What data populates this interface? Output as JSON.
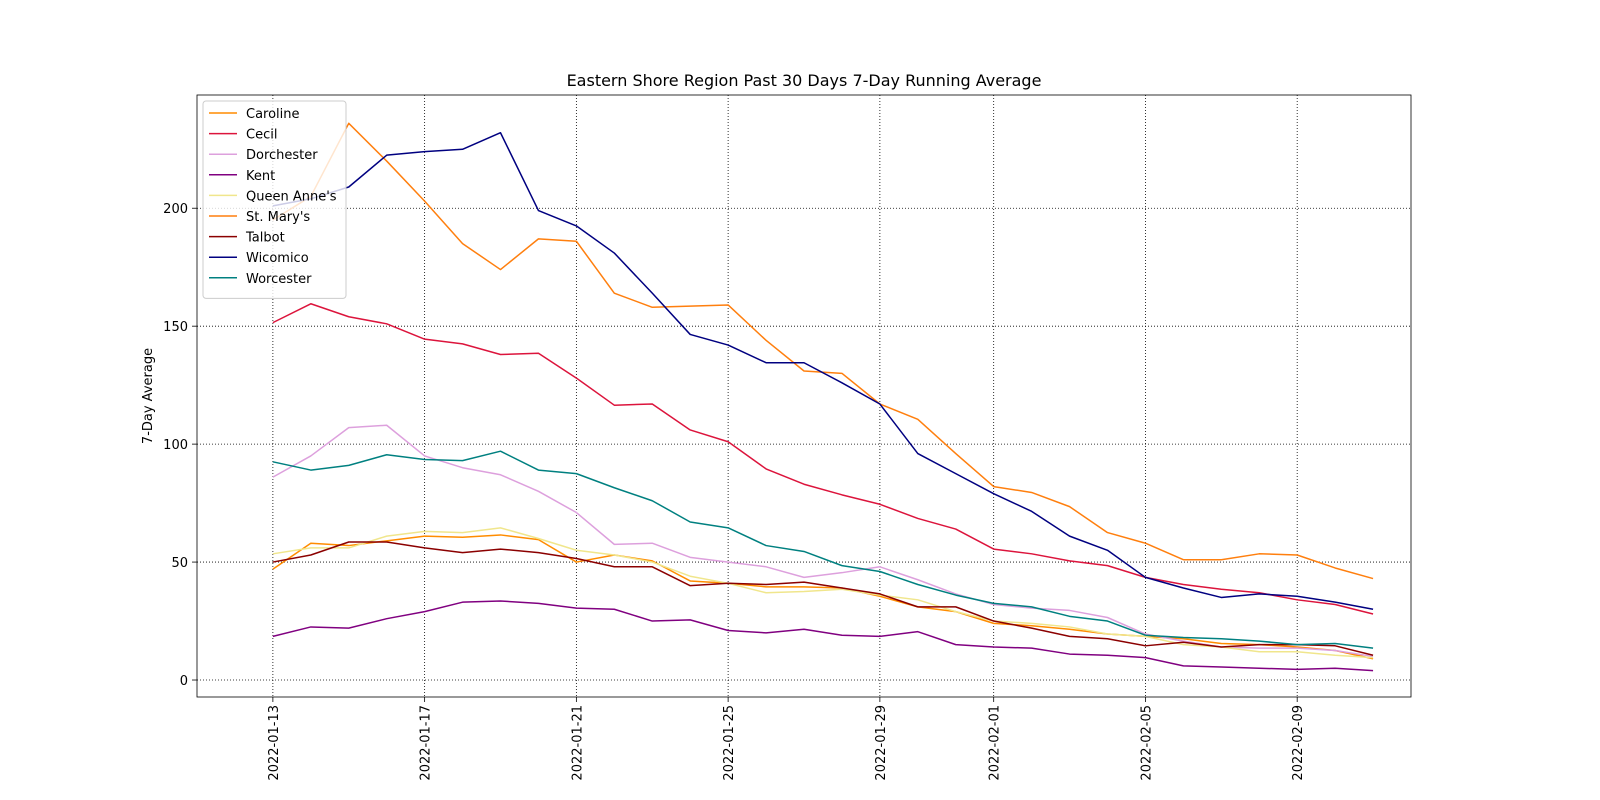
{
  "chart_data": {
    "type": "line",
    "title": "Eastern Shore Region Past 30 Days 7-Day Running Average",
    "y_label": "7-Day Average",
    "x": [
      "2022-01-13",
      "2022-01-14",
      "2022-01-15",
      "2022-01-16",
      "2022-01-17",
      "2022-01-18",
      "2022-01-19",
      "2022-01-20",
      "2022-01-21",
      "2022-01-22",
      "2022-01-23",
      "2022-01-24",
      "2022-01-25",
      "2022-01-26",
      "2022-01-27",
      "2022-01-28",
      "2022-01-29",
      "2022-01-30",
      "2022-01-31",
      "2022-02-01",
      "2022-02-02",
      "2022-02-03",
      "2022-02-04",
      "2022-02-05",
      "2022-02-06",
      "2022-02-07",
      "2022-02-08",
      "2022-02-09",
      "2022-02-10",
      "2022-02-11"
    ],
    "xlim": [
      "2022-01-11",
      "2022-02-12"
    ],
    "xticks": [
      "2022-01-13",
      "2022-01-17",
      "2022-01-21",
      "2022-01-25",
      "2022-01-29",
      "2022-02-01",
      "2022-02-05",
      "2022-02-09"
    ],
    "ylim": [
      -7.2,
      248
    ],
    "yticks": [
      0,
      50,
      100,
      150,
      200
    ],
    "grid": true,
    "legend": "upper left",
    "series": [
      {
        "name": "Caroline",
        "color": "#ff8c00",
        "values": [
          47,
          58,
          57,
          59,
          61,
          60.5,
          61.5,
          59.5,
          50,
          53,
          50.5,
          42,
          41,
          39.5,
          39.5,
          39,
          35.5,
          31,
          29,
          24,
          23,
          21.5,
          19.5,
          18.5,
          17.5,
          15.5,
          15,
          14,
          12.5,
          9
        ]
      },
      {
        "name": "Cecil",
        "color": "#dc143c",
        "values": [
          151.5,
          159.5,
          154,
          151,
          144.5,
          142.5,
          138,
          138.5,
          128,
          116.5,
          117,
          106,
          101,
          89.5,
          83,
          78.5,
          74.5,
          68.5,
          64,
          55.5,
          53.5,
          50.5,
          48.5,
          43.5,
          40.5,
          38.5,
          37,
          34,
          32,
          28
        ]
      },
      {
        "name": "Dorchester",
        "color": "#dda0dd",
        "values": [
          86,
          95,
          107,
          108,
          95,
          90,
          87,
          80,
          71,
          57.5,
          58,
          52,
          50,
          48,
          43.5,
          45.5,
          48,
          42.5,
          36.5,
          32,
          30.5,
          29.5,
          26.5,
          19.5,
          16.5,
          14,
          13.5,
          13.5,
          12.5,
          10
        ]
      },
      {
        "name": "Kent",
        "color": "#800080",
        "values": [
          18.5,
          22.5,
          22,
          26,
          29,
          33,
          33.5,
          32.5,
          30.5,
          30,
          25,
          25.5,
          21,
          20,
          21.5,
          19,
          18.5,
          20.5,
          15,
          14,
          13.5,
          11,
          10.5,
          9.5,
          6,
          5.5,
          5,
          4.5,
          5,
          4
        ]
      },
      {
        "name": "Queen Anne's",
        "color": "#f0e68c",
        "values": [
          53.5,
          56,
          56,
          61,
          63,
          62.5,
          64.5,
          60,
          55,
          53,
          50,
          44,
          41,
          37,
          37.5,
          38.5,
          36,
          34,
          29,
          25,
          24,
          22.5,
          19.5,
          18.5,
          15,
          14,
          12,
          12,
          10.5,
          9.5
        ]
      },
      {
        "name": "St. Mary's",
        "color": "#ff7f0e",
        "values": [
          195,
          205,
          236,
          220,
          203,
          185,
          174,
          187,
          186,
          164,
          158,
          158.5,
          159,
          144,
          131,
          130,
          117,
          110.5,
          96,
          82,
          79.5,
          73.5,
          62.5,
          58,
          51,
          51,
          53.5,
          53,
          47.5,
          43
        ]
      },
      {
        "name": "Talbot",
        "color": "#8b0000",
        "values": [
          50,
          53,
          58.5,
          58.5,
          56,
          54,
          55.5,
          54,
          51.5,
          48,
          48,
          40,
          41,
          40.5,
          41.5,
          39,
          36.5,
          31,
          31,
          25,
          22,
          18.5,
          17.5,
          14.5,
          16,
          14,
          15,
          15,
          14.5,
          10.5
        ]
      },
      {
        "name": "Wicomico",
        "color": "#000080",
        "values": [
          201,
          204,
          209,
          222.5,
          224,
          225,
          232,
          199,
          192.5,
          181,
          164,
          146.5,
          142,
          134.5,
          134.5,
          126,
          117,
          96,
          87.5,
          79,
          71.5,
          61,
          55,
          43.5,
          39,
          35,
          36.5,
          35.5,
          33,
          30
        ]
      },
      {
        "name": "Worcester",
        "color": "#008080",
        "values": [
          92.5,
          89,
          91,
          95.5,
          93.5,
          93,
          97,
          89,
          87.5,
          81.5,
          76,
          67,
          64.5,
          57,
          54.5,
          48.5,
          46,
          40.5,
          36,
          32.5,
          31,
          27,
          25,
          19,
          18,
          17.5,
          16.5,
          15,
          15.5,
          13.5
        ]
      }
    ]
  }
}
